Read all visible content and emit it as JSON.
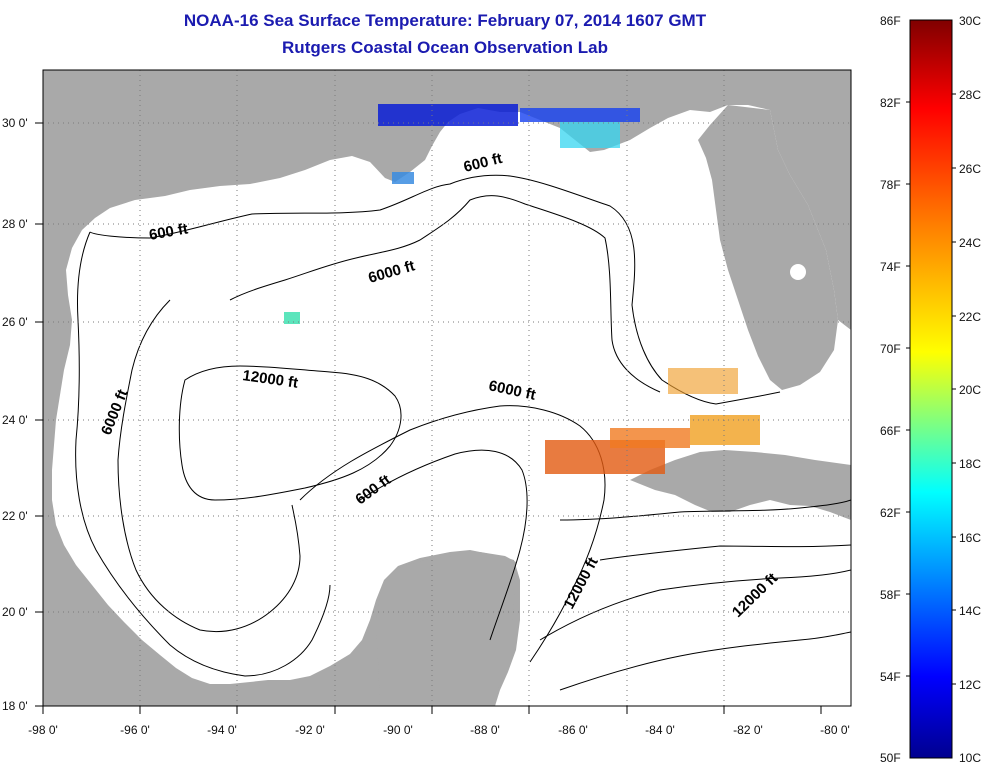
{
  "header": {
    "title": "NOAA-16 Sea Surface Temperature:  February 07, 2014 1607 GMT",
    "subtitle": "Rutgers Coastal Ocean Observation Lab"
  },
  "map": {
    "lon_labels": [
      "-98 0'",
      "-96 0'",
      "-94 0'",
      "-92 0'",
      "-90 0'",
      "-88 0'",
      "-86 0'",
      "-84 0'",
      "-82 0'",
      "-80 0'"
    ],
    "lat_labels": [
      "30 0'",
      "28 0'",
      "26 0'",
      "24 0'",
      "22 0'",
      "20 0'",
      "18 0'"
    ],
    "contour_labels": [
      "600 ft",
      "600 ft",
      "6000 ft",
      "6000 ft",
      "12000 ft",
      "6000 ft",
      "600 ft",
      "12000 ft",
      "12000 ft"
    ],
    "colors": {
      "land": "#a9a9a9",
      "water": "#ffffff",
      "contour": "#000000",
      "grid": "#7a7a7a"
    }
  },
  "colorbar": {
    "fahrenheit_labels": [
      "86F",
      "82F",
      "78F",
      "74F",
      "70F",
      "66F",
      "62F",
      "58F",
      "54F",
      "50F"
    ],
    "celsius_labels": [
      "30C",
      "28C",
      "26C",
      "24C",
      "22C",
      "20C",
      "18C",
      "16C",
      "14C",
      "12C",
      "10C"
    ],
    "colormap": "jet"
  }
}
